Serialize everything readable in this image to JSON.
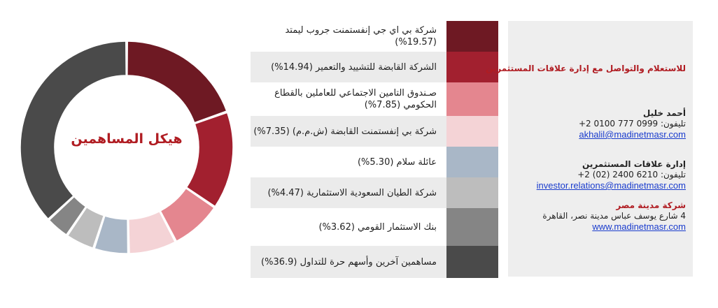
{
  "chart_data": {
    "type": "pie",
    "title": "هيكل المساهمين",
    "unit": "%",
    "slices": [
      {
        "label": "شركة بي اي جي إنفستمنت جروب ليمتد",
        "value": 19.57,
        "display": "شركة بي اي جي إنفستمنت جروب ليمتد (19.57%)",
        "color": "#6e1923"
      },
      {
        "label": "الشركة القابضة للتشييد والتعمير",
        "value": 14.94,
        "display": "الشركة القابضة للتشييد والتعمير (14.94%)",
        "color": "#a2202f"
      },
      {
        "label": "صـندوق التامين الاجتماعي للعاملين بالقطاع الحكومي",
        "value": 7.85,
        "display": "صـندوق التامين الاجتماعي للعاملين بالقطاع الحكومي (7.85%)",
        "color": "#e4868f"
      },
      {
        "label": "شركة بي إنفستمنت القابضة (ش.م.م)",
        "value": 7.35,
        "display": "شركة بي إنفستمنت القابضة (ش.م.م) (7.35%)",
        "color": "#f4d3d6"
      },
      {
        "label": "عائلة سلام",
        "value": 5.3,
        "display": "عائلة سلام (5.30%)",
        "color": "#a9b7c7"
      },
      {
        "label": "شركة الطيان السعودية الاستثمارية",
        "value": 4.47,
        "display": "شركة الطيان السعودية الاستثمارية (4.47%)",
        "color": "#bdbdbd"
      },
      {
        "label": "بنك الاستثمار القومي",
        "value": 3.62,
        "display": "بنك الاستثمار القومي (3.62%)",
        "color": "#858585"
      },
      {
        "label": "مساهمين آخرين وأسهم حرة للتداول",
        "value": 36.9,
        "display": "مساهمين آخرين وأسهم حرة للتداول (36.9%)",
        "color": "#4a4a4a"
      }
    ],
    "legend_position": "right"
  },
  "contact": {
    "heading": "للاستعلام والتواصل مع إدارة علاقات المستثمرين",
    "person_name": "أحمد خليل",
    "person_phone": "تليفون: 0999 777 0100 2+",
    "person_email": "akhalil@madinetmasr.com",
    "dept_name": "إدارة علاقات المستثمرين",
    "dept_phone": "تليفون: 6210 2400 (02) 2+",
    "dept_email": "investor.relations@madinetmasr.com",
    "company_name": "شركة مدينة مصر",
    "company_address": "4 شارع يوسف عباس مدينة نصر، القاهرة",
    "company_website": "www.madinetmasr.com"
  }
}
